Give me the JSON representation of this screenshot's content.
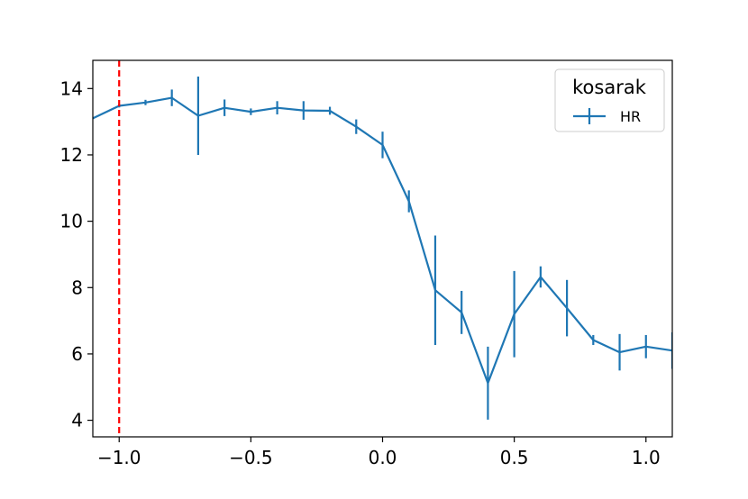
{
  "chart_data": {
    "type": "line",
    "title": "",
    "xlabel": "",
    "ylabel": "",
    "xlim": [
      -1.1,
      1.1
    ],
    "ylim": [
      3.5,
      14.85
    ],
    "x_ticks": [
      -1.0,
      -0.5,
      0.0,
      0.5,
      1.0
    ],
    "x_tick_labels": [
      "−1.0",
      "−0.5",
      "0.0",
      "0.5",
      "1.0"
    ],
    "y_ticks": [
      4,
      6,
      8,
      10,
      12,
      14
    ],
    "y_tick_labels": [
      "4",
      "6",
      "8",
      "10",
      "12",
      "14"
    ],
    "grid": false,
    "reference_line": {
      "x": -1.0,
      "color": "#ff0000",
      "style": "dashed"
    },
    "legend": {
      "title": "kosarak",
      "placement": "top-right"
    },
    "series": [
      {
        "name": "HR",
        "color": "#1f77b4",
        "x": [
          -1.1,
          -1.0,
          -0.9,
          -0.8,
          -0.7,
          -0.6,
          -0.5,
          -0.4,
          -0.3,
          -0.2,
          -0.1,
          0.0,
          0.1,
          0.2,
          0.3,
          0.4,
          0.5,
          0.6,
          0.7,
          0.8,
          0.9,
          1.0,
          1.1
        ],
        "y": [
          13.1,
          13.48,
          13.58,
          13.72,
          13.18,
          13.42,
          13.3,
          13.42,
          13.34,
          13.33,
          12.85,
          12.3,
          10.6,
          7.92,
          7.25,
          5.12,
          7.2,
          8.32,
          7.38,
          6.42,
          6.05,
          6.22,
          6.1
        ],
        "err": [
          0.0,
          0.05,
          0.08,
          0.25,
          1.18,
          0.25,
          0.1,
          0.2,
          0.28,
          0.12,
          0.22,
          0.4,
          0.33,
          1.65,
          0.65,
          1.1,
          1.3,
          0.32,
          0.85,
          0.15,
          0.55,
          0.35,
          0.55
        ]
      }
    ]
  }
}
